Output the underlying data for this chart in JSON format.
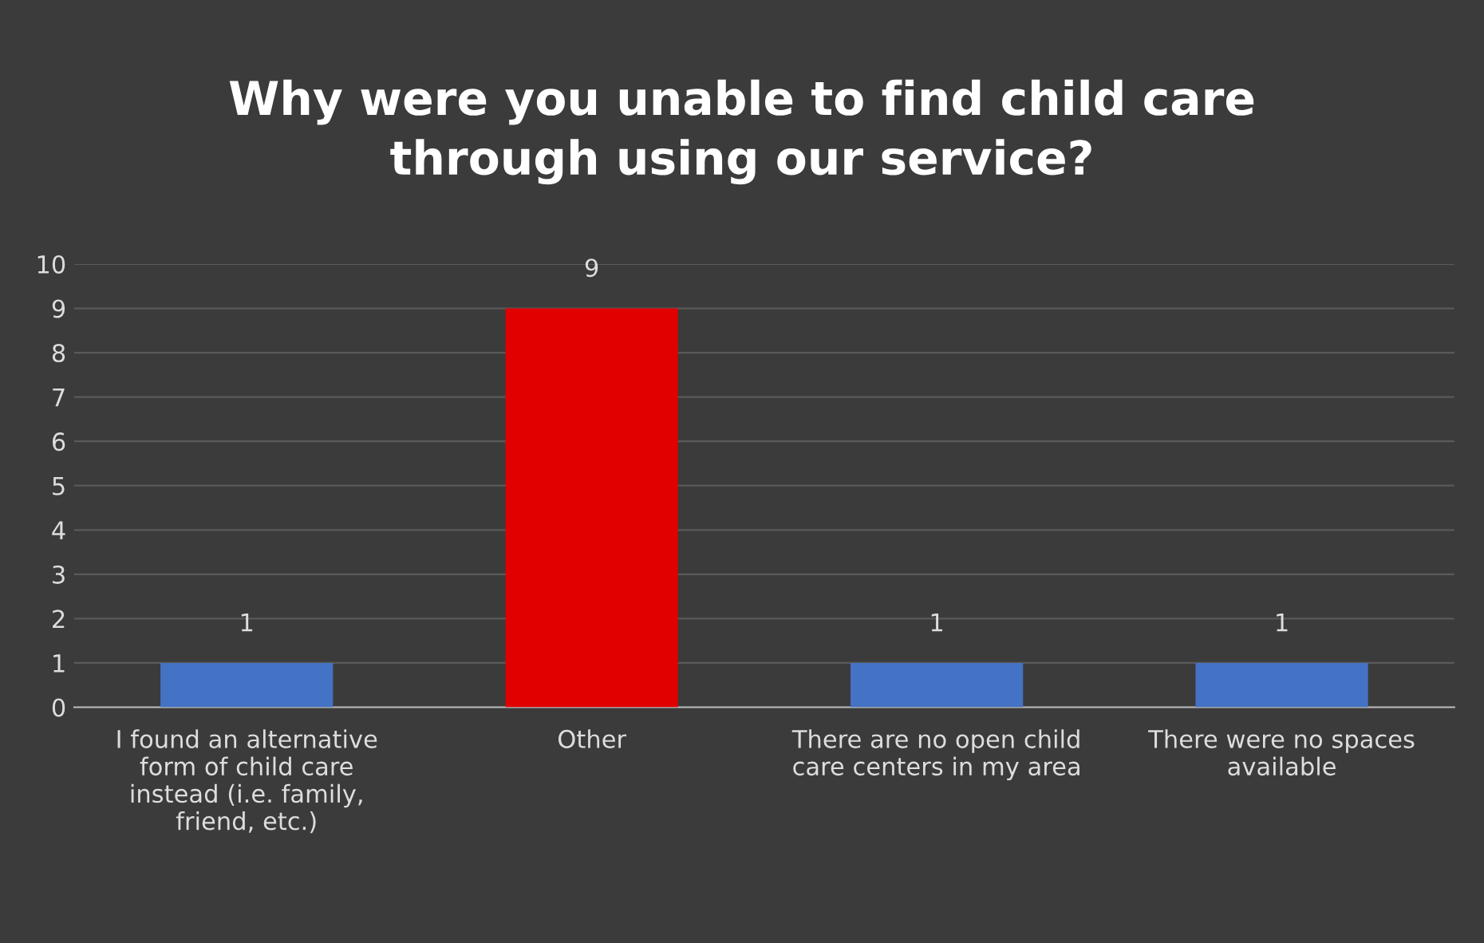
{
  "chart_data": {
    "type": "bar",
    "title": "Why were you unable to find child care through using our service?",
    "categories": [
      "I found an alternative form of child care instead (i.e. family, friend, etc.)",
      "Other",
      "There are no open child care centers in my area",
      "There were no spaces available"
    ],
    "values": [
      1,
      9,
      1,
      1
    ],
    "colors": [
      "#4472c4",
      "#e00000",
      "#4472c4",
      "#4472c4"
    ],
    "ylim": [
      0,
      10
    ],
    "yticks": [
      0,
      1,
      2,
      3,
      4,
      5,
      6,
      7,
      8,
      9,
      10
    ],
    "grid": "y",
    "data_labels": true,
    "legend": false
  }
}
